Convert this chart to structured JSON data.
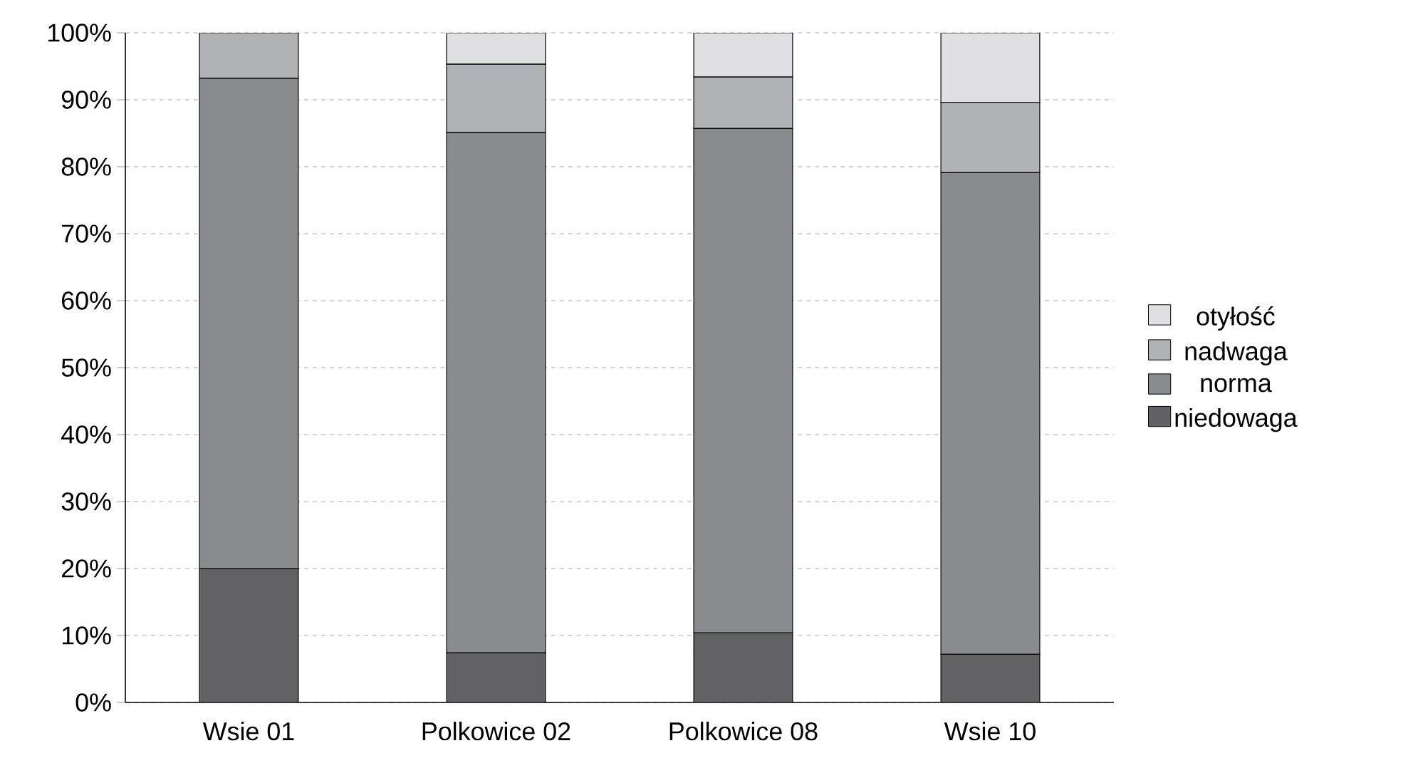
{
  "chart_data": {
    "type": "bar",
    "stacked": true,
    "categories": [
      "Wsie 01",
      "Polkowice 02",
      "Polkowice 08",
      "Wsie 10"
    ],
    "series": [
      {
        "name": "niedowaga",
        "color": "#626264",
        "values": [
          20,
          7.4,
          10.4,
          7.2
        ]
      },
      {
        "name": "norma",
        "color": "#8a8b8f",
        "values": [
          73.2,
          77.7,
          75.3,
          71.9
        ]
      },
      {
        "name": "nadwaga",
        "color": "#b1b2b5",
        "values": [
          6.8,
          10.2,
          7.7,
          10.5
        ]
      },
      {
        "name": "otyłość",
        "color": "#e0e0e2",
        "values": [
          0,
          4.7,
          6.6,
          10.4
        ]
      }
    ],
    "ylim": [
      0,
      100
    ],
    "yticks": [
      {
        "value": 0,
        "label": "0%"
      },
      {
        "value": 10,
        "label": "10%"
      },
      {
        "value": 20,
        "label": "20%"
      },
      {
        "value": 30,
        "label": "30%"
      },
      {
        "value": 40,
        "label": "40%"
      },
      {
        "value": 50,
        "label": "50%"
      },
      {
        "value": 60,
        "label": "60%"
      },
      {
        "value": 70,
        "label": "70%"
      },
      {
        "value": 80,
        "label": "80%"
      },
      {
        "value": 90,
        "label": "90%"
      },
      {
        "value": 100,
        "label": "100%"
      }
    ],
    "grid": "y",
    "legend": "right"
  }
}
